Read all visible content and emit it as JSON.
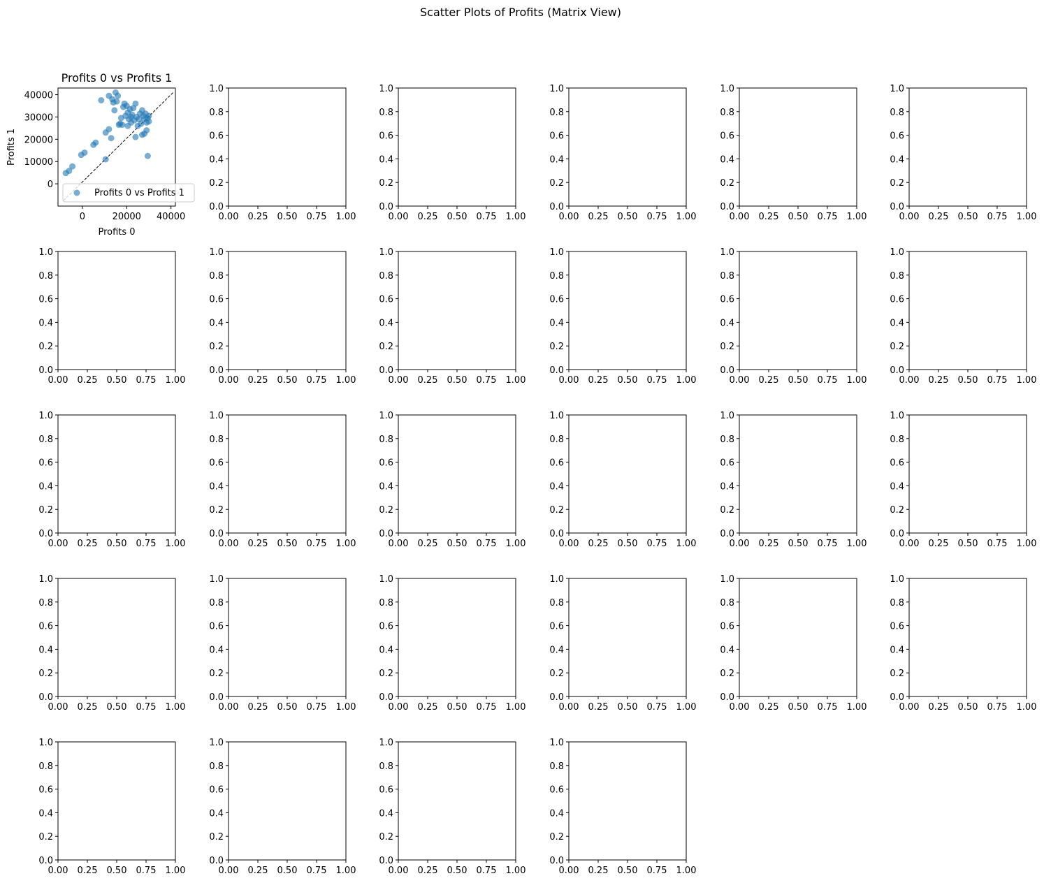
{
  "suptitle": "Scatter Plots of Profits (Matrix View)",
  "chart_data": [
    {
      "type": "scatter",
      "title": "Profits 0 vs Profits 1",
      "xlabel": "Profits 0",
      "ylabel": "Profits 1",
      "xlim": [
        -11000,
        42000
      ],
      "ylim": [
        -10000,
        43000
      ],
      "xticks": [
        0,
        20000,
        40000
      ],
      "xticklabels": [
        "0",
        "20000",
        "40000"
      ],
      "yticks": [
        0,
        10000,
        20000,
        30000,
        40000
      ],
      "yticklabels": [
        "0",
        "10000",
        "20000",
        "30000",
        "40000"
      ],
      "reference_line": {
        "style": "dashed",
        "color": "#000000",
        "from": [
          -8500,
          -7500
        ],
        "to": [
          41000,
          41000
        ]
      },
      "legend": {
        "location": "lower right",
        "entries": [
          "Profits 0 vs Profits 1"
        ]
      },
      "series": [
        {
          "name": "Profits 0 vs Profits 1",
          "color": "#1f77b4",
          "alpha": 0.6,
          "points": [
            [
              -7500,
              4800
            ],
            [
              -6000,
              5800
            ],
            [
              -4500,
              7800
            ],
            [
              -500,
              13000
            ],
            [
              1000,
              14000
            ],
            [
              5000,
              17500
            ],
            [
              6000,
              18500
            ],
            [
              8500,
              37500
            ],
            [
              10500,
              11000
            ],
            [
              10500,
              23000
            ],
            [
              12000,
              24500
            ],
            [
              12000,
              39500
            ],
            [
              13000,
              20500
            ],
            [
              13500,
              38000
            ],
            [
              14000,
              36500
            ],
            [
              14500,
              33000
            ],
            [
              15000,
              41000
            ],
            [
              15500,
              37000
            ],
            [
              16000,
              39500
            ],
            [
              16500,
              26500
            ],
            [
              17000,
              27000
            ],
            [
              17500,
              29500
            ],
            [
              18000,
              26500
            ],
            [
              18500,
              34500
            ],
            [
              19000,
              36000
            ],
            [
              19500,
              30500
            ],
            [
              20000,
              35000
            ],
            [
              20500,
              32000
            ],
            [
              20500,
              26000
            ],
            [
              21000,
              29000
            ],
            [
              21500,
              33500
            ],
            [
              22000,
              27500
            ],
            [
              22500,
              31000
            ],
            [
              23000,
              34000
            ],
            [
              23500,
              28500
            ],
            [
              24000,
              36000
            ],
            [
              24000,
              21000
            ],
            [
              24500,
              30000
            ],
            [
              25000,
              26000
            ],
            [
              25500,
              29000
            ],
            [
              26000,
              31500
            ],
            [
              26500,
              27000
            ],
            [
              27000,
              33000
            ],
            [
              27000,
              22000
            ],
            [
              27500,
              30500
            ],
            [
              28000,
              29000
            ],
            [
              28000,
              22500
            ],
            [
              28500,
              31500
            ],
            [
              29000,
              27500
            ],
            [
              29000,
              24000
            ],
            [
              29500,
              29500
            ],
            [
              29500,
              12500
            ],
            [
              30000,
              28000
            ],
            [
              30000,
              30500
            ],
            [
              22000,
              30000
            ]
          ]
        }
      ]
    }
  ],
  "empty_axes": {
    "count": 27,
    "xticklabels": [
      "0.00",
      "0.25",
      "0.50",
      "0.75",
      "1.00"
    ],
    "yticklabels": [
      "0.0",
      "0.2",
      "0.4",
      "0.6",
      "0.8",
      "1.0"
    ]
  }
}
